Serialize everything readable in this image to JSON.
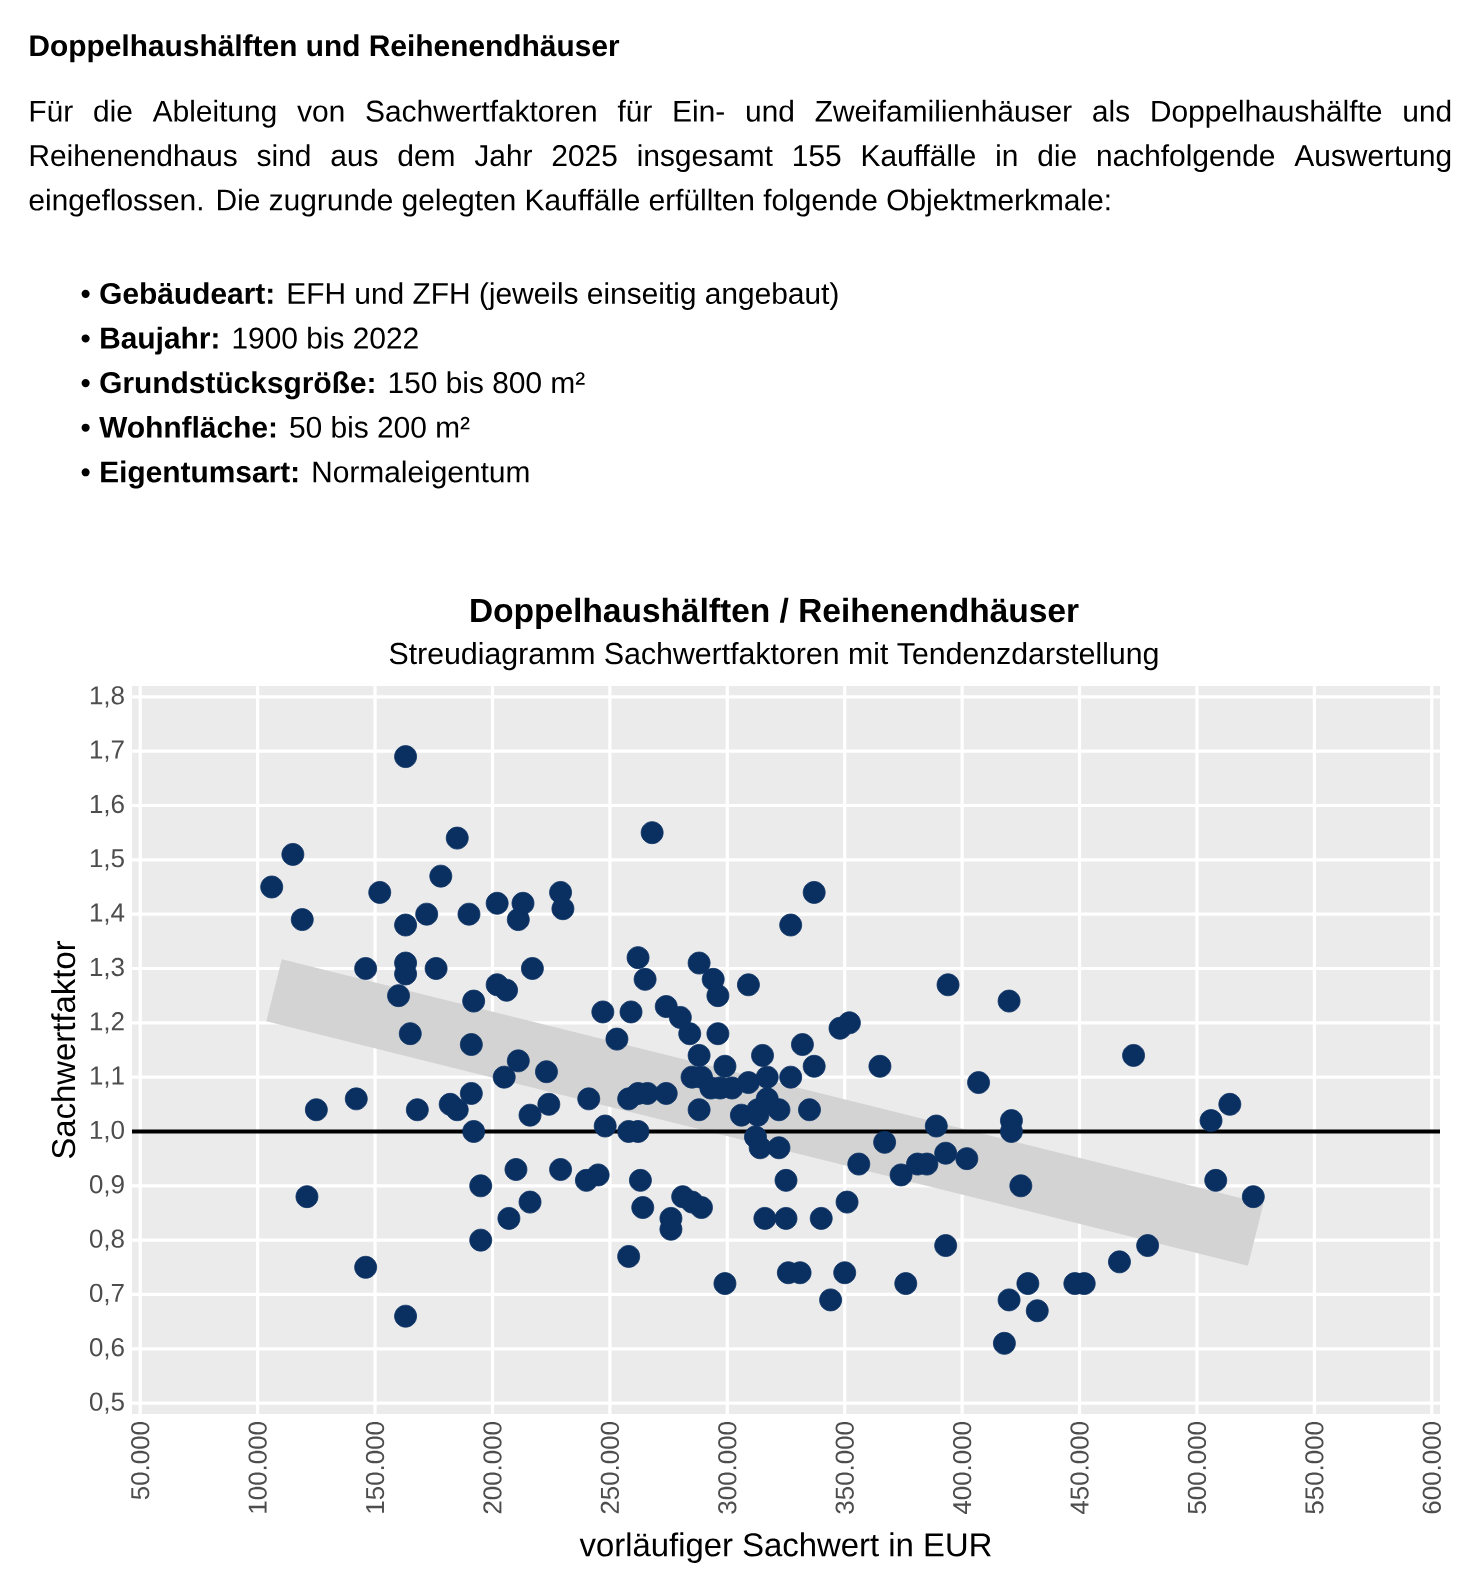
{
  "chart_data": {
    "type": "scatter",
    "title": "Doppelhaushälften / Reihenendhäuser",
    "subtitle": "Streudiagramm Sachwertfaktoren mit Tendenzdarstellung",
    "xlabel": "vorläufiger Sachwert in EUR",
    "ylabel": "Sachwertfaktor",
    "annotations": [
      "Doppelhaushälften und Reihenendhäuser",
      "Für die Ableitung von Sachwertfaktoren für Ein- und Zweifamilienhäuser als Doppelhaushälfte und Reihenendhaus sind aus dem Jahr 2025 insgesamt 155 Kauffälle in die nachfolgende Auswertung eingeflossen. Die zugrunde gelegten Kauffälle erfüllten folgende Objektmerkmale:",
      "• **Gebäudeart:** EFH und ZFH (jeweils einseitig angebaut)",
      "• **Baujahr:** 1900 bis 2022",
      "• **Grundstücksgröße:** 150 bis 800 m²",
      "• **Wohnfläche:** 50 bis 200 m²",
      "• **Eigentumsart:** Normaleigentum"
    ],
    "xlim": [
      46500,
      603500
    ],
    "ylim": [
      0.48,
      1.82
    ],
    "xticks": [
      {
        "value": 50000,
        "label": "50.000"
      },
      {
        "value": 100000,
        "label": "100.000"
      },
      {
        "value": 150000,
        "label": "150.000"
      },
      {
        "value": 200000,
        "label": "200.000"
      },
      {
        "value": 250000,
        "label": "250.000"
      },
      {
        "value": 300000,
        "label": "300.000"
      },
      {
        "value": 350000,
        "label": "350.000"
      },
      {
        "value": 400000,
        "label": "400.000"
      },
      {
        "value": 450000,
        "label": "450.000"
      },
      {
        "value": 500000,
        "label": "500.000"
      },
      {
        "value": 550000,
        "label": "550.000"
      },
      {
        "value": 600000,
        "label": "600.000"
      }
    ],
    "yticks": [
      {
        "value": 0.5,
        "label": "0,5"
      },
      {
        "value": 0.6,
        "label": "0,6"
      },
      {
        "value": 0.7,
        "label": "0,7"
      },
      {
        "value": 0.8,
        "label": "0,8"
      },
      {
        "value": 0.9,
        "label": "0,9"
      },
      {
        "value": 1.0,
        "label": "1,0"
      },
      {
        "value": 1.1,
        "label": "1,1"
      },
      {
        "value": 1.2,
        "label": "1,2"
      },
      {
        "value": 1.3,
        "label": "1,3"
      },
      {
        "value": 1.4,
        "label": "1,4"
      },
      {
        "value": 1.5,
        "label": "1,5"
      },
      {
        "value": 1.6,
        "label": "1,6"
      },
      {
        "value": 1.7,
        "label": "1,7"
      },
      {
        "value": 1.8,
        "label": "1,8"
      }
    ],
    "grid": true,
    "marker": "circle",
    "ref_lines": [
      {
        "axis": "y",
        "value": 1.0,
        "color": "#000000"
      }
    ],
    "series": [
      {
        "type": "line",
        "marker": "none",
        "color": "#d3d3d3",
        "x": [
          107000,
          525000
        ],
        "values": [
          1.26,
          0.81
        ]
      },
      {
        "color": "#0a3062",
        "x": [
          106000,
          115000,
          119000,
          125000,
          121000,
          142000,
          146000,
          146000,
          152000,
          163000,
          163000,
          163000,
          163000,
          160000,
          165000,
          163000,
          168000,
          172000,
          176000,
          178000,
          185000,
          190000,
          192000,
          191000,
          191000,
          182000,
          185000,
          192000,
          195000,
          195000,
          202000,
          202000,
          206000,
          205000,
          211000,
          213000,
          211000,
          217000,
          216000,
          224000,
          223000,
          210000,
          207000,
          216000,
          229000,
          230000,
          229000,
          240000,
          245000,
          241000,
          248000,
          247000,
          253000,
          259000,
          262000,
          265000,
          268000,
          258000,
          262000,
          266000,
          274000,
          258000,
          262000,
          263000,
          264000,
          258000,
          274000,
          280000,
          284000,
          288000,
          294000,
          296000,
          296000,
          309000,
          288000,
          285000,
          289000,
          293000,
          299000,
          302000,
          309000,
          315000,
          317000,
          327000,
          332000,
          337000,
          288000,
          306000,
          313000,
          322000,
          335000,
          312000,
          314000,
          322000,
          325000,
          281000,
          285000,
          289000,
          276000,
          276000,
          299000,
          316000,
          325000,
          340000,
          351000,
          326000,
          331000,
          350000,
          344000,
          327000,
          337000,
          348000,
          352000,
          365000,
          356000,
          367000,
          376000,
          374000,
          381000,
          385000,
          389000,
          393000,
          393000,
          394000,
          402000,
          407000,
          297000,
          317000,
          313000,
          420000,
          421000,
          421000,
          425000,
          473000,
          506000,
          514000,
          508000,
          524000,
          479000,
          467000,
          448000,
          452000,
          428000,
          420000,
          432000,
          418000
        ],
        "values": [
          1.45,
          1.51,
          1.39,
          1.04,
          0.88,
          1.06,
          1.3,
          0.75,
          1.44,
          1.69,
          1.38,
          1.31,
          1.29,
          1.25,
          1.18,
          0.66,
          1.04,
          1.4,
          1.3,
          1.47,
          1.54,
          1.4,
          1.24,
          1.16,
          1.07,
          1.05,
          1.04,
          1.0,
          0.9,
          0.8,
          1.42,
          1.27,
          1.26,
          1.1,
          1.13,
          1.42,
          1.39,
          1.3,
          1.03,
          1.05,
          1.11,
          0.93,
          0.84,
          0.87,
          1.44,
          1.41,
          0.93,
          0.91,
          0.92,
          1.06,
          1.01,
          1.22,
          1.17,
          1.22,
          1.32,
          1.28,
          1.55,
          1.06,
          1.07,
          1.07,
          1.07,
          1.0,
          1.0,
          0.91,
          0.86,
          0.77,
          1.23,
          1.21,
          1.18,
          1.31,
          1.28,
          1.25,
          1.18,
          1.27,
          1.14,
          1.1,
          1.1,
          1.08,
          1.12,
          1.08,
          1.09,
          1.14,
          1.1,
          1.1,
          1.16,
          1.12,
          1.04,
          1.03,
          1.04,
          1.04,
          1.04,
          0.99,
          0.97,
          0.97,
          0.91,
          0.88,
          0.87,
          0.86,
          0.84,
          0.82,
          0.72,
          0.84,
          0.84,
          0.84,
          0.87,
          0.74,
          0.74,
          0.74,
          0.69,
          1.38,
          1.44,
          1.19,
          1.2,
          1.12,
          0.94,
          0.98,
          0.72,
          0.92,
          0.94,
          0.94,
          1.01,
          0.96,
          0.79,
          1.27,
          0.95,
          1.09,
          1.08,
          1.06,
          1.03,
          1.24,
          1.02,
          1.0,
          0.9,
          1.14,
          1.02,
          1.05,
          0.91,
          0.88,
          0.79,
          0.76,
          0.72,
          0.72,
          0.72,
          0.69,
          0.67,
          0.61
        ]
      }
    ]
  }
}
